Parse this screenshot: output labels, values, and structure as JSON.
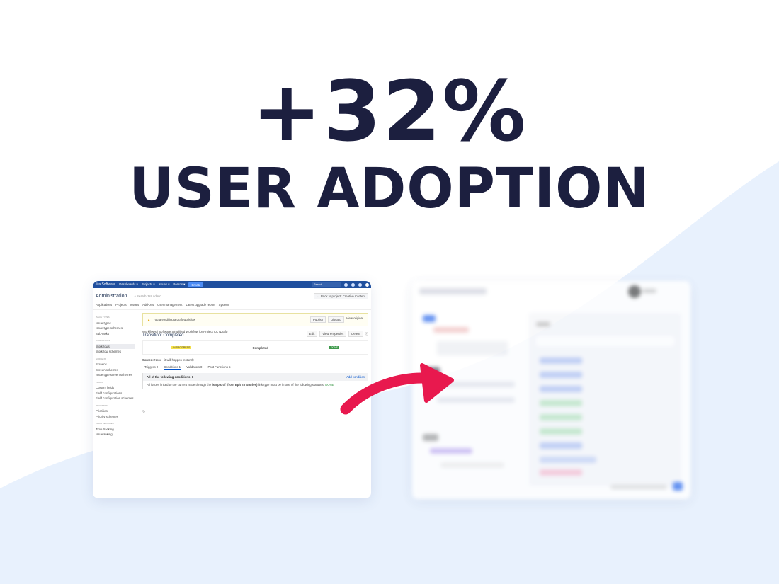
{
  "headline": {
    "stat": "+32%",
    "caption": "USER ADOPTION"
  },
  "colors": {
    "text": "#1c1f3f",
    "wave": "#e8f1fd",
    "arrow": "#e8194e",
    "nav": "#1f4f9e"
  },
  "jira": {
    "nav": {
      "logo": "Jira Software",
      "items": [
        "Dashboards ▾",
        "Projects ▾",
        "Issues ▾",
        "Boards ▾"
      ],
      "create": "Create",
      "search_placeholder": "Search"
    },
    "header": {
      "title": "Administration",
      "search": "⌕ Search Jira admin",
      "back": "← Back to project: Creative Content"
    },
    "tabs": [
      "Applications",
      "Projects",
      "Issues",
      "Add-ons",
      "User management",
      "Latest upgrade report",
      "System"
    ],
    "sidebar": [
      {
        "group": "ISSUE TYPES",
        "items": [
          "Issue types",
          "Issue type schemes",
          "Sub-tasks"
        ]
      },
      {
        "group": "WORKFLOWS",
        "items": [
          "Workflows",
          "Workflow schemes"
        ]
      },
      {
        "group": "SCREENS",
        "items": [
          "Screens",
          "Screen schemes",
          "Issue type screen schemes"
        ]
      },
      {
        "group": "FIELDS",
        "items": [
          "Custom fields",
          "Field configurations",
          "Field configuration schemes"
        ]
      },
      {
        "group": "PRIORITIES",
        "items": [
          "Priorities",
          "Priority schemes"
        ]
      },
      {
        "group": "ISSUE FEATURES",
        "items": [
          "Time tracking",
          "Issue linking"
        ]
      }
    ],
    "warning": {
      "text": "You are editing a draft workflow",
      "publish": "Publish",
      "discard": "Discard",
      "view": "View original"
    },
    "breadcrumb": "Workflows  /  Software Simplified Workflow for Project CC (Draft)",
    "title": "Transition: Completed",
    "actions": [
      "Edit",
      "View Properties",
      "Delete"
    ],
    "flow": {
      "from": "IN PROGRESS",
      "transition": "Completed",
      "to": "DONE"
    },
    "screen": {
      "label": "Screen:",
      "value": "None - it will happen instantly"
    },
    "ctabs": [
      "Triggers 0",
      "Conditions 1",
      "Validators 0",
      "Post Functions 5"
    ],
    "conditions": {
      "header": "All of the following conditions",
      "count": "1",
      "add": "Add condition",
      "line_pre": "All issues linked to the current issue through the ",
      "line_bold": "is Epic of (from Epic to Stories)",
      "line_post": " link type must be in one of the following statuses: ",
      "status": "DONE"
    }
  }
}
